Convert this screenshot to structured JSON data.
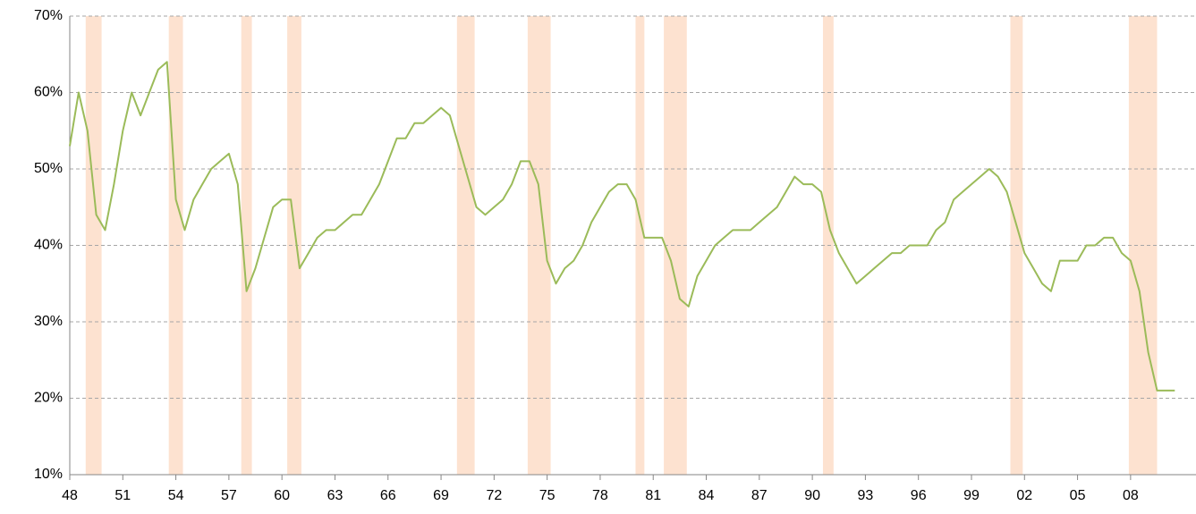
{
  "chart_data": {
    "type": "line",
    "x": [
      1948.0,
      1948.5,
      1949.0,
      1949.5,
      1950.0,
      1950.5,
      1951.0,
      1951.5,
      1952.0,
      1952.5,
      1953.0,
      1953.5,
      1954.0,
      1954.5,
      1955.0,
      1955.5,
      1956.0,
      1956.5,
      1957.0,
      1957.5,
      1958.0,
      1958.5,
      1959.0,
      1959.5,
      1960.0,
      1960.5,
      1961.0,
      1961.5,
      1962.0,
      1962.5,
      1963.0,
      1963.5,
      1964.0,
      1964.5,
      1965.0,
      1965.5,
      1966.0,
      1966.5,
      1967.0,
      1967.5,
      1968.0,
      1968.5,
      1969.0,
      1969.5,
      1970.0,
      1970.5,
      1971.0,
      1971.5,
      1972.0,
      1972.5,
      1973.0,
      1973.5,
      1974.0,
      1974.5,
      1975.0,
      1975.5,
      1976.0,
      1976.5,
      1977.0,
      1977.5,
      1978.0,
      1978.5,
      1979.0,
      1979.5,
      1980.0,
      1980.5,
      1981.0,
      1981.5,
      1982.0,
      1982.5,
      1983.0,
      1983.5,
      1984.0,
      1984.5,
      1985.0,
      1985.5,
      1986.0,
      1986.5,
      1987.0,
      1987.5,
      1988.0,
      1988.5,
      1989.0,
      1989.5,
      1990.0,
      1990.5,
      1991.0,
      1991.5,
      1992.0,
      1992.5,
      1993.0,
      1993.5,
      1994.0,
      1994.5,
      1995.0,
      1995.5,
      1996.0,
      1996.5,
      1997.0,
      1997.5,
      1998.0,
      1998.5,
      1999.0,
      1999.5,
      2000.0,
      2000.5,
      2001.0,
      2001.5,
      2002.0,
      2002.5,
      2003.0,
      2003.5,
      2004.0,
      2004.5,
      2005.0,
      2005.5,
      2006.0,
      2006.5,
      2007.0,
      2007.5,
      2008.0,
      2008.5,
      2009.0,
      2009.5,
      2010.0,
      2010.5
    ],
    "series": [
      {
        "color": "#9bbb59",
        "values": [
          53,
          60,
          55,
          44,
          42,
          48,
          55,
          60,
          57,
          60,
          63,
          64,
          46,
          42,
          46,
          48,
          50,
          51,
          52,
          48,
          34,
          37,
          41,
          45,
          46,
          46,
          37,
          39,
          41,
          42,
          42,
          43,
          44,
          44,
          46,
          48,
          51,
          54,
          54,
          56,
          56,
          57,
          58,
          57,
          53,
          49,
          45,
          44,
          45,
          46,
          48,
          51,
          51,
          48,
          38,
          35,
          37,
          38,
          40,
          43,
          45,
          47,
          48,
          48,
          46,
          41,
          41,
          41,
          38,
          33,
          32,
          36,
          38,
          40,
          41,
          42,
          42,
          42,
          43,
          44,
          45,
          47,
          49,
          48,
          48,
          47,
          42,
          39,
          37,
          35,
          36,
          37,
          38,
          39,
          39,
          40,
          40,
          40,
          42,
          43,
          46,
          47,
          48,
          49,
          50,
          49,
          47,
          43,
          39,
          37,
          35,
          34,
          38,
          38,
          38,
          40,
          40,
          41,
          41,
          39,
          38,
          34,
          26,
          21,
          21,
          21
        ]
      }
    ],
    "recessions": [
      [
        1948.9,
        1949.8
      ],
      [
        1953.6,
        1954.4
      ],
      [
        1957.7,
        1958.3
      ],
      [
        1960.3,
        1961.1
      ],
      [
        1969.9,
        1970.9
      ],
      [
        1973.9,
        1975.2
      ],
      [
        1980.0,
        1980.5
      ],
      [
        1981.6,
        1982.9
      ],
      [
        1990.6,
        1991.2
      ],
      [
        2001.2,
        2001.9
      ],
      [
        2007.9,
        2009.5
      ]
    ],
    "recession_color": "#fde2d0",
    "xlim": [
      1948,
      2011.7
    ],
    "xticks": [
      {
        "value": 1948,
        "label": "48"
      },
      {
        "value": 1951,
        "label": "51"
      },
      {
        "value": 1954,
        "label": "54"
      },
      {
        "value": 1957,
        "label": "57"
      },
      {
        "value": 1960,
        "label": "60"
      },
      {
        "value": 1963,
        "label": "63"
      },
      {
        "value": 1966,
        "label": "66"
      },
      {
        "value": 1969,
        "label": "69"
      },
      {
        "value": 1972,
        "label": "72"
      },
      {
        "value": 1975,
        "label": "75"
      },
      {
        "value": 1978,
        "label": "78"
      },
      {
        "value": 1981,
        "label": "81"
      },
      {
        "value": 1984,
        "label": "84"
      },
      {
        "value": 1987,
        "label": "87"
      },
      {
        "value": 1990,
        "label": "90"
      },
      {
        "value": 1993,
        "label": "93"
      },
      {
        "value": 1996,
        "label": "96"
      },
      {
        "value": 1999,
        "label": "99"
      },
      {
        "value": 2002,
        "label": "02"
      },
      {
        "value": 2005,
        "label": "05"
      },
      {
        "value": 2008,
        "label": "08"
      }
    ],
    "ylim": [
      10,
      70
    ],
    "yticks": [
      {
        "value": 10,
        "label": "10%"
      },
      {
        "value": 20,
        "label": "20%"
      },
      {
        "value": 30,
        "label": "30%"
      },
      {
        "value": 40,
        "label": "40%"
      },
      {
        "value": 50,
        "label": "50%"
      },
      {
        "value": 60,
        "label": "60%"
      },
      {
        "value": 70,
        "label": "70%"
      }
    ],
    "grid": true
  }
}
